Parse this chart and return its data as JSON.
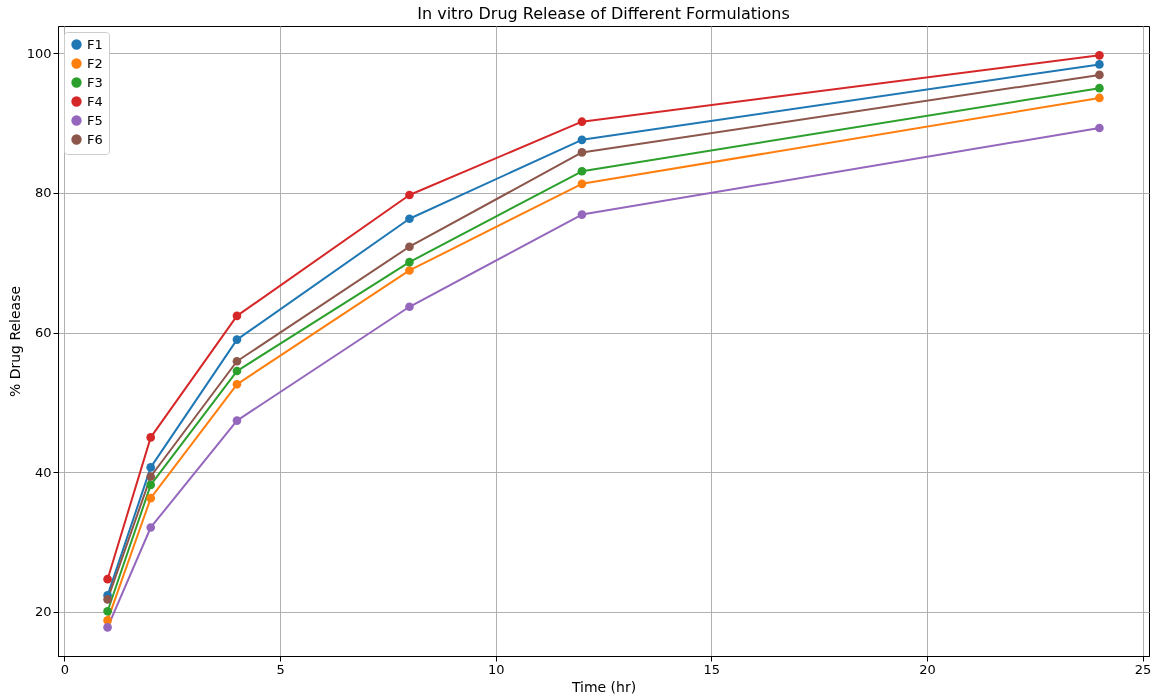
{
  "chart_data": {
    "type": "line",
    "title": "In vitro Drug Release of Different Formulations",
    "xlabel": "Time (hr)",
    "ylabel": "% Drug Release",
    "x": [
      1,
      2,
      4,
      8,
      12,
      24
    ],
    "series": [
      {
        "name": "F1",
        "color": "#1f77b4",
        "values": [
          22.4,
          40.7,
          59.0,
          76.3,
          87.6,
          98.4
        ]
      },
      {
        "name": "F2",
        "color": "#ff7f0e",
        "values": [
          18.8,
          36.3,
          52.6,
          68.9,
          81.3,
          93.6
        ]
      },
      {
        "name": "F3",
        "color": "#2ca02c",
        "values": [
          20.1,
          38.2,
          54.5,
          70.1,
          83.1,
          95.0
        ]
      },
      {
        "name": "F4",
        "color": "#d62728",
        "values": [
          24.7,
          45.0,
          62.4,
          79.7,
          90.2,
          99.7
        ]
      },
      {
        "name": "F5",
        "color": "#9467bd",
        "values": [
          17.8,
          32.1,
          47.4,
          63.7,
          76.9,
          89.3
        ]
      },
      {
        "name": "F6",
        "color": "#8c564b",
        "values": [
          21.8,
          39.4,
          55.9,
          72.3,
          85.8,
          96.9
        ]
      }
    ],
    "xlim": [
      -0.15,
      25.15
    ],
    "xticks": [
      0,
      5,
      10,
      15,
      20,
      25
    ],
    "ylim": [
      13.7,
      103.9
    ],
    "yticks": [
      20,
      40,
      60,
      80,
      100
    ],
    "grid": true,
    "legend": "top left",
    "marker": "circle",
    "line_style": "solid"
  }
}
